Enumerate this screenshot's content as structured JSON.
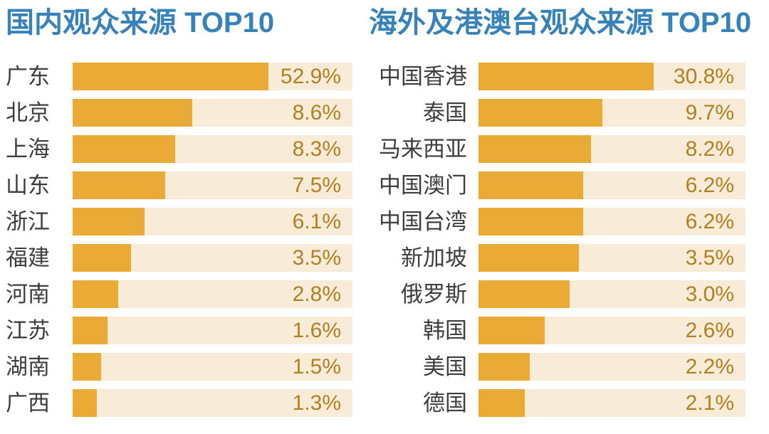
{
  "colors": {
    "title": "#3782B9",
    "bar": "#EAAB36",
    "track": "#F8ECD8",
    "value_text": "#B27F21",
    "label_text": "#3E3E3E",
    "background": "#FFFFFF"
  },
  "chart_data": [
    {
      "type": "bar",
      "orientation": "horizontal",
      "title": "国内观众来源 TOP10",
      "categories": [
        "广东",
        "北京",
        "上海",
        "山东",
        "浙江",
        "福建",
        "河南",
        "江苏",
        "湖南",
        "广西"
      ],
      "values": [
        52.9,
        8.6,
        8.3,
        7.5,
        6.1,
        3.5,
        2.8,
        1.6,
        1.5,
        1.3
      ],
      "value_labels": [
        "52.9%",
        "8.6%",
        "8.3%",
        "7.5%",
        "6.1%",
        "3.5%",
        "2.8%",
        "1.6%",
        "1.5%",
        "1.3%"
      ],
      "unit": "%",
      "bar_display_pct": [
        70.0,
        42.7,
        36.6,
        33.1,
        25.7,
        20.9,
        16.3,
        12.5,
        10.2,
        8.7
      ],
      "legend": "none",
      "grid": false,
      "value_label_position": "inside-track-right"
    },
    {
      "type": "bar",
      "orientation": "horizontal",
      "title": "海外及港澳台观众来源 TOP10",
      "categories": [
        "中国香港",
        "泰国",
        "马来西亚",
        "中国澳门",
        "中国台湾",
        "新加坡",
        "俄罗斯",
        "韩国",
        "美国",
        "德国"
      ],
      "values": [
        30.8,
        9.7,
        8.2,
        6.2,
        6.2,
        3.5,
        3.0,
        2.6,
        2.2,
        2.1
      ],
      "value_labels": [
        "30.8%",
        "9.7%",
        "8.2%",
        "6.2%",
        "6.2%",
        "3.5%",
        "3.0%",
        "2.6%",
        "2.2%",
        "2.1%"
      ],
      "unit": "%",
      "bar_display_pct": [
        65.6,
        46.4,
        42.1,
        39.2,
        39.2,
        37.6,
        34.1,
        24.8,
        19.2,
        17.3
      ],
      "legend": "none",
      "grid": false,
      "value_label_position": "inside-track-right"
    }
  ]
}
